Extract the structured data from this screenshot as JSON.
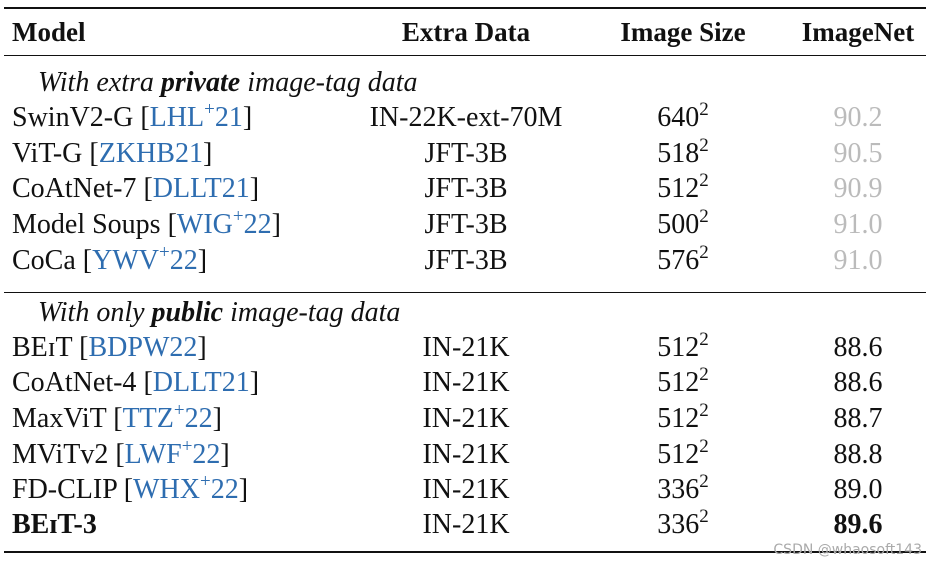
{
  "header": [
    "Model",
    "Extra Data",
    "Image Size",
    "ImageNet"
  ],
  "sections": [
    {
      "title": {
        "pre": "With extra ",
        "bold": "private",
        "post": " image-tag data"
      },
      "rows": [
        {
          "model": "SwinV2-G",
          "cite": {
            "open": "[",
            "key": "LHL",
            "sup": "+",
            "year": "21",
            "close": "]"
          },
          "extra": "IN-22K-ext-70M",
          "size": "640",
          "exp": "2",
          "imagenet": "90.2"
        },
        {
          "model": "ViT-G",
          "cite": {
            "open": "[",
            "key": "ZKHB21",
            "close": "]"
          },
          "extra": "JFT-3B",
          "size": "518",
          "exp": "2",
          "imagenet": "90.5"
        },
        {
          "model": "CoAtNet-7",
          "cite": {
            "open": "[",
            "key": "DLLT21",
            "close": "]"
          },
          "extra": "JFT-3B",
          "size": "512",
          "exp": "2",
          "imagenet": "90.9"
        },
        {
          "model": "Model Soups",
          "cite": {
            "open": "[",
            "key": "WIG",
            "sup": "+",
            "year": "22",
            "close": "]"
          },
          "extra": "JFT-3B",
          "size": "500",
          "exp": "2",
          "imagenet": "91.0"
        },
        {
          "model": "CoCa",
          "cite": {
            "open": "[",
            "key": "YWV",
            "sup": "+",
            "year": "22",
            "close": "]"
          },
          "extra": "JFT-3B",
          "size": "576",
          "exp": "2",
          "imagenet": "91.0"
        }
      ]
    },
    {
      "title": {
        "pre": "With only ",
        "bold": "public",
        "post": " image-tag data"
      },
      "rows": [
        {
          "model": "BEɪT",
          "cite": {
            "open": "[",
            "key": "BDPW22",
            "close": "]"
          },
          "extra": "IN-21K",
          "size": "512",
          "exp": "2",
          "imagenet": "88.6"
        },
        {
          "model": "CoAtNet-4",
          "cite": {
            "open": "[",
            "key": "DLLT21",
            "close": "]"
          },
          "extra": "IN-21K",
          "size": "512",
          "exp": "2",
          "imagenet": "88.6"
        },
        {
          "model": "MaxViT",
          "cite": {
            "open": "[",
            "key": "TTZ",
            "sup": "+",
            "year": "22",
            "close": "]"
          },
          "extra": "IN-21K",
          "size": "512",
          "exp": "2",
          "imagenet": "88.7"
        },
        {
          "model": "MViTv2",
          "cite": {
            "open": "[",
            "key": "LWF",
            "sup": "+",
            "year": "22",
            "close": "]"
          },
          "extra": "IN-21K",
          "size": "512",
          "exp": "2",
          "imagenet": "88.8"
        },
        {
          "model": "FD-CLIP",
          "cite": {
            "open": "[",
            "key": "WHX",
            "sup": "+",
            "year": "22",
            "close": "]"
          },
          "extra": "IN-21K",
          "size": "336",
          "exp": "2",
          "imagenet": "89.0"
        },
        {
          "model": "BEɪT-3",
          "extra": "IN-21K",
          "size": "336",
          "exp": "2",
          "imagenet": "89.6"
        }
      ]
    }
  ],
  "watermark": "CSDN @whaosoft143"
}
